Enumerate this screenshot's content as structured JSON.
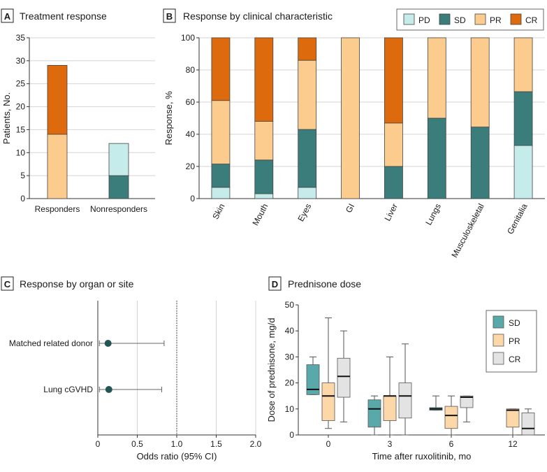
{
  "colors": {
    "PD": "#c6ebeb",
    "SD": "#3a7d7b",
    "PR": "#fccb8e",
    "CR": "#dd6a0c",
    "box_SD": "#5aa9aa",
    "box_PR": "#fcd7a8",
    "box_CR": "#e3e3e3",
    "dot": "#225654",
    "axis": "#333333",
    "grid": "#d4d4d4"
  },
  "chart_data": [
    {
      "id": "A",
      "letter": "A",
      "title": "Treatment response",
      "type": "bar",
      "stacked": true,
      "categories": [
        "Responders",
        "Nonresponders"
      ],
      "series": [
        {
          "name": "SD",
          "values": [
            0,
            5
          ]
        },
        {
          "name": "PD",
          "values": [
            0,
            7
          ]
        },
        {
          "name": "PR",
          "values": [
            14,
            0
          ]
        },
        {
          "name": "CR",
          "values": [
            15,
            0
          ]
        }
      ],
      "ylabel": "Patients, No.",
      "ylim": [
        0,
        35
      ],
      "yticks": [
        "0",
        "5",
        "10",
        "15",
        "20",
        "25",
        "30",
        "35"
      ],
      "grid": true
    },
    {
      "id": "B",
      "letter": "B",
      "title": "Response by clinical characteristic",
      "type": "bar",
      "stacked": true,
      "categories": [
        "Skin",
        "Mouth",
        "Eyes",
        "GI",
        "Liver",
        "Lungs",
        "Musculoskeletal",
        "Genitalia"
      ],
      "series": [
        {
          "name": "PD",
          "values": [
            7,
            3,
            7,
            0,
            0,
            0,
            0,
            33
          ]
        },
        {
          "name": "SD",
          "values": [
            14.5,
            21,
            36,
            0,
            20,
            50,
            44.5,
            33.5
          ]
        },
        {
          "name": "PR",
          "values": [
            39.5,
            24,
            43,
            100,
            27,
            50,
            55.5,
            33.5
          ]
        },
        {
          "name": "CR",
          "values": [
            39,
            52,
            14,
            0,
            53,
            0,
            0,
            0
          ]
        }
      ],
      "legend": [
        "PD",
        "SD",
        "PR",
        "CR"
      ],
      "legend_position": "top-right",
      "ylabel": "Response, %",
      "ylim": [
        0,
        100
      ],
      "yticks": [
        "0",
        "20",
        "40",
        "60",
        "80",
        "100"
      ],
      "grid": true
    },
    {
      "id": "C",
      "letter": "C",
      "title": "Response by organ or site",
      "type": "scatter",
      "subtype": "forest",
      "categories": [
        "Matched related donor",
        "Lung cGVHD"
      ],
      "points": [
        {
          "label": "Matched related donor",
          "or": 0.13,
          "lo": 0.02,
          "hi": 0.84
        },
        {
          "label": "Lung cGVHD",
          "or": 0.14,
          "lo": 0.02,
          "hi": 0.81
        }
      ],
      "xlabel": "Odds ratio (95% CI)",
      "xlim": [
        0,
        2.0
      ],
      "xticks": [
        "0",
        "0.5",
        "1.0",
        "1.5",
        "2.0"
      ],
      "reference_line": 1.0,
      "grid": true
    },
    {
      "id": "D",
      "letter": "D",
      "title": "Prednisone dose",
      "type": "box",
      "categories": [
        "0",
        "3",
        "6",
        "12"
      ],
      "series": [
        {
          "name": "SD",
          "boxes": [
            {
              "min": 15.5,
              "q1": 15.5,
              "median": 17.5,
              "q3": 27,
              "max": 30
            },
            {
              "min": 0,
              "q1": 3,
              "median": 10,
              "q3": 13.5,
              "max": 15
            },
            {
              "min": 9.5,
              "q1": 9.5,
              "median": 10,
              "q3": 10.5,
              "max": 15
            },
            null
          ]
        },
        {
          "name": "PR",
          "boxes": [
            {
              "min": 2.5,
              "q1": 5.5,
              "median": 15,
              "q3": 20,
              "max": 45
            },
            {
              "min": 0,
              "q1": 5.5,
              "median": 15,
              "q3": 15,
              "max": 30
            },
            {
              "min": 0,
              "q1": 2.5,
              "median": 7.5,
              "q3": 11,
              "max": 15
            },
            {
              "min": 0,
              "q1": 3,
              "median": 9.5,
              "q3": 10,
              "max": 10
            }
          ]
        },
        {
          "name": "CR",
          "boxes": [
            {
              "min": 5,
              "q1": 14.5,
              "median": 22.5,
              "q3": 29.5,
              "max": 40
            },
            {
              "min": 0,
              "q1": 6.5,
              "median": 15,
              "q3": 20,
              "max": 35
            },
            {
              "min": 5,
              "q1": 10.5,
              "median": 14.5,
              "q3": 15,
              "max": 15
            },
            {
              "min": 0,
              "q1": 0,
              "median": 2.5,
              "q3": 8.5,
              "max": 10
            }
          ]
        }
      ],
      "legend": [
        "SD",
        "PR",
        "CR"
      ],
      "legend_position": "top-right",
      "xlabel": "Time after ruxolitinib, mo",
      "ylabel": "Dose of prednisone, mg/d",
      "ylim": [
        0,
        50
      ],
      "yticks": [
        "0",
        "10",
        "20",
        "30",
        "40",
        "50"
      ],
      "grid": false
    }
  ]
}
